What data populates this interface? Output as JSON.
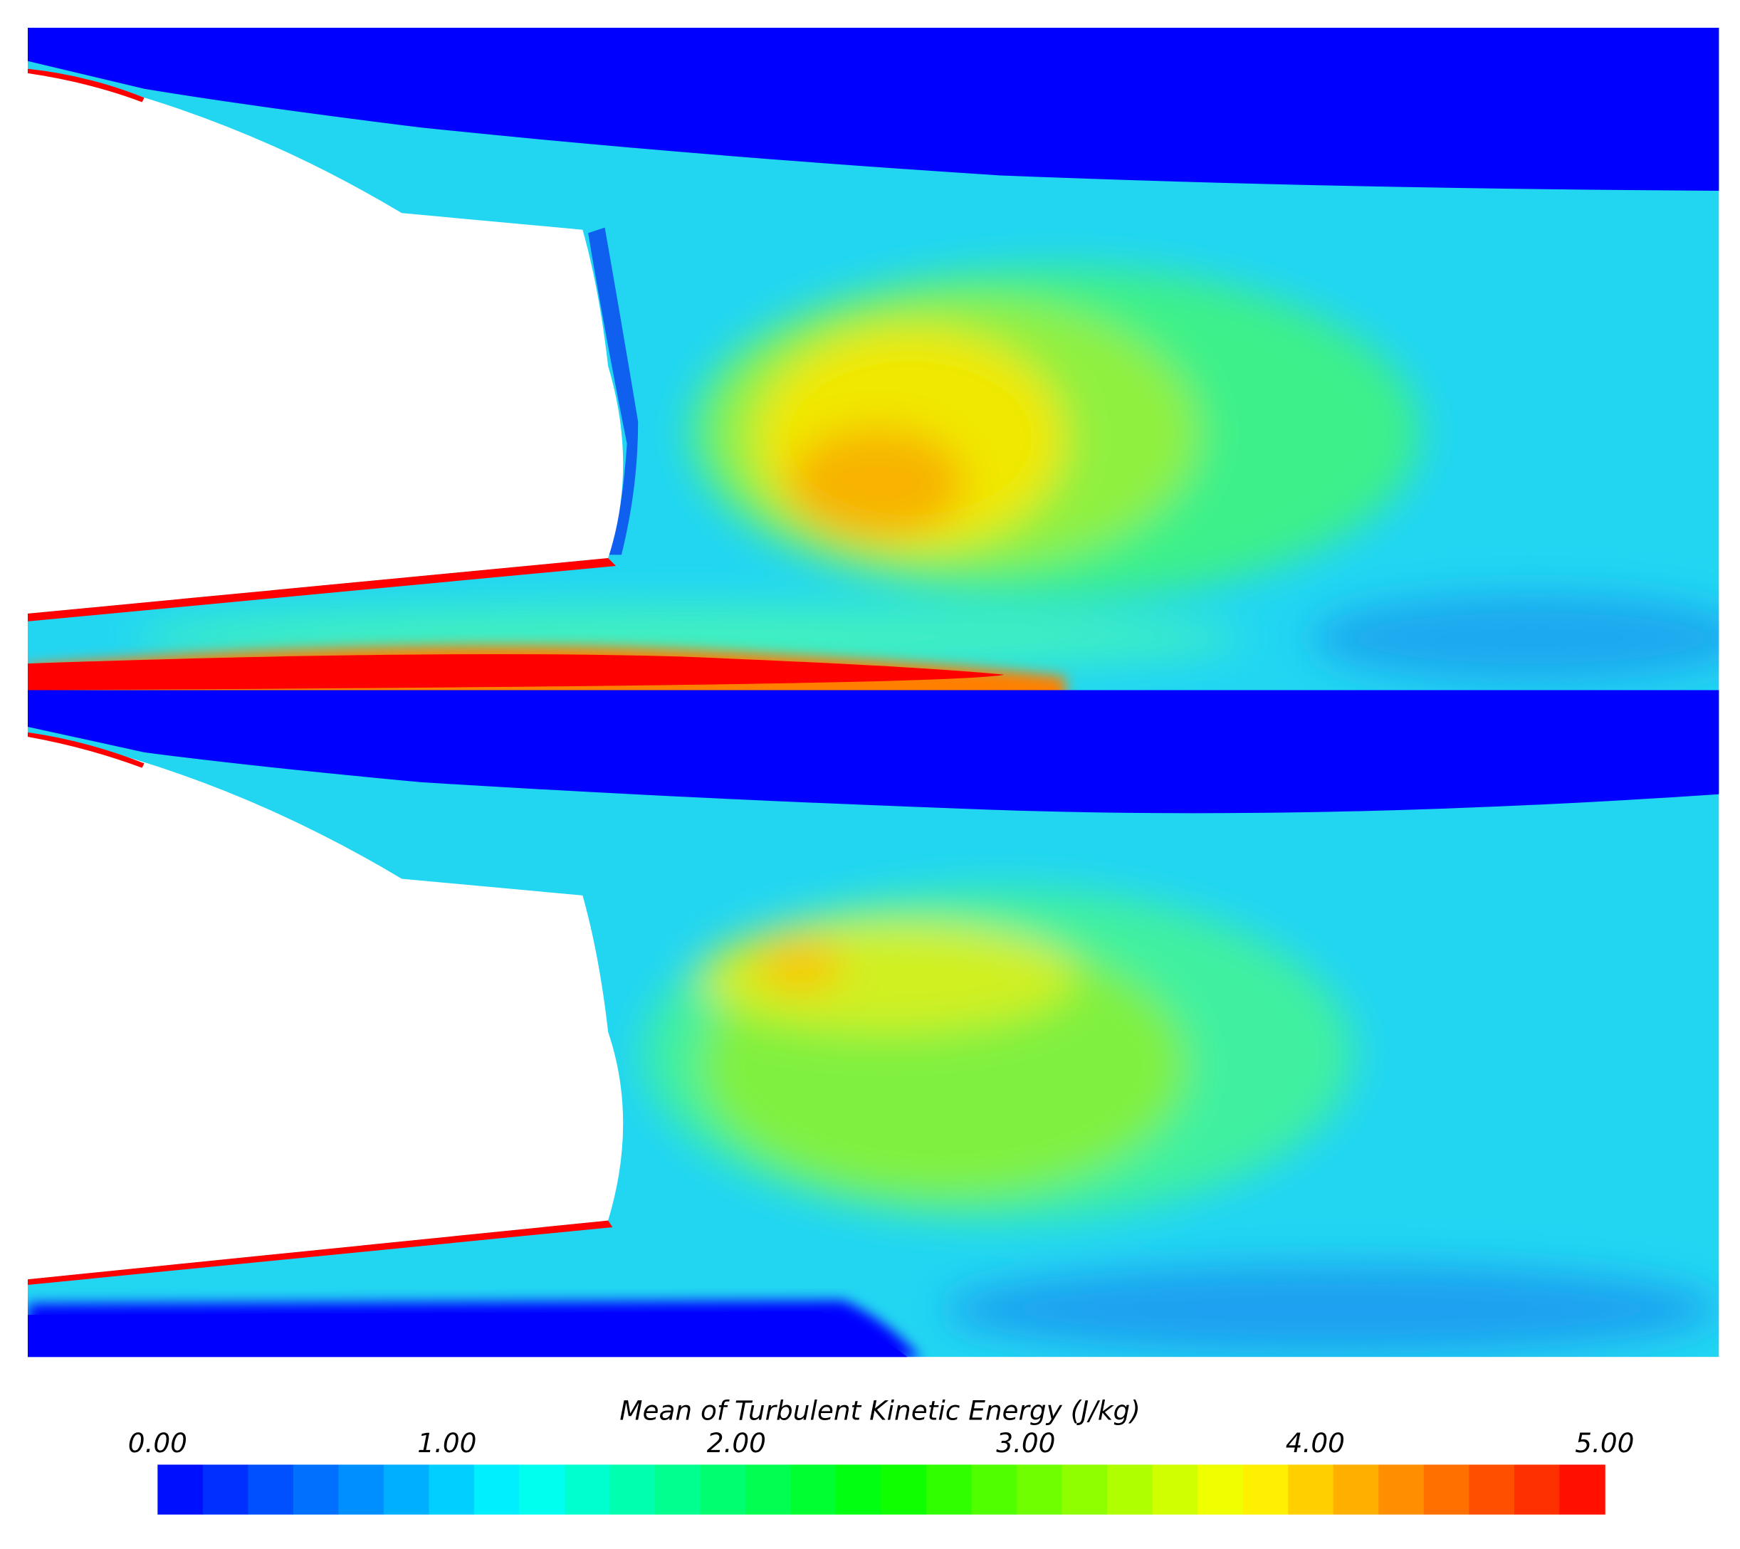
{
  "chart_data": {
    "type": "contour",
    "colorbar": {
      "title": "Mean of Turbulent Kinetic Energy (J/kg)",
      "clim": [
        0,
        5
      ],
      "ticks": [
        {
          "value": 0,
          "label": "0.00"
        },
        {
          "value": 1,
          "label": "1.00"
        },
        {
          "value": 2,
          "label": "2.00"
        },
        {
          "value": 3,
          "label": "3.00"
        },
        {
          "value": 4,
          "label": "4.00"
        },
        {
          "value": 5,
          "label": "5.00"
        }
      ],
      "levels": 32,
      "colors": [
        "#0000ff",
        "#00ffff",
        "#00ff00",
        "#ffff00",
        "#ff0000"
      ]
    }
  }
}
